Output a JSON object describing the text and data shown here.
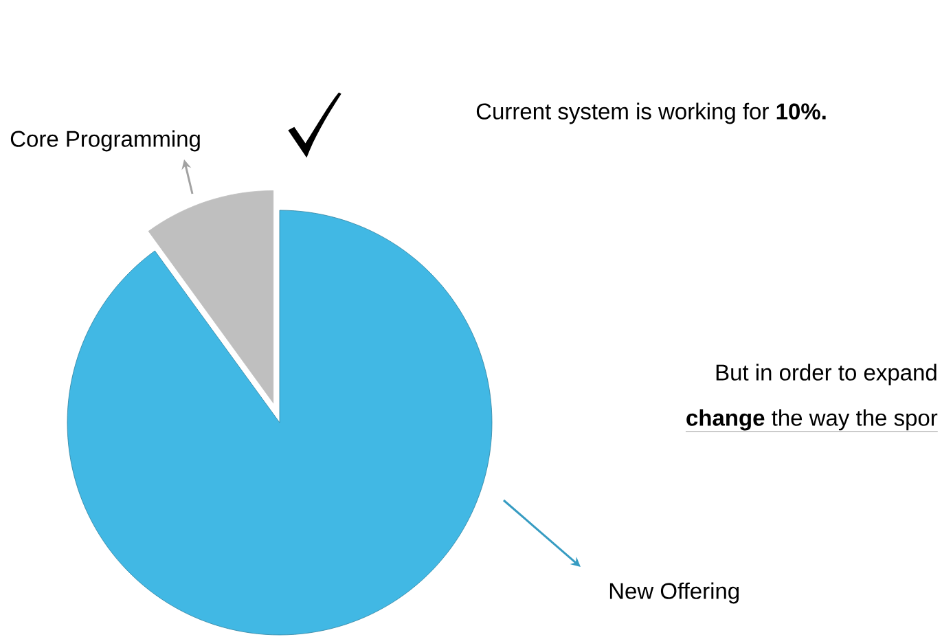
{
  "chart_data": {
    "type": "pie",
    "categories": [
      "Core Programming",
      "New Offering"
    ],
    "values": [
      10,
      90
    ],
    "colors": [
      "#bfbfbf",
      "#41b8e4"
    ],
    "annotations": [
      "Current system is working for **10%.**",
      "But in order to expand",
      "**change** the way the spor"
    ]
  }
}
